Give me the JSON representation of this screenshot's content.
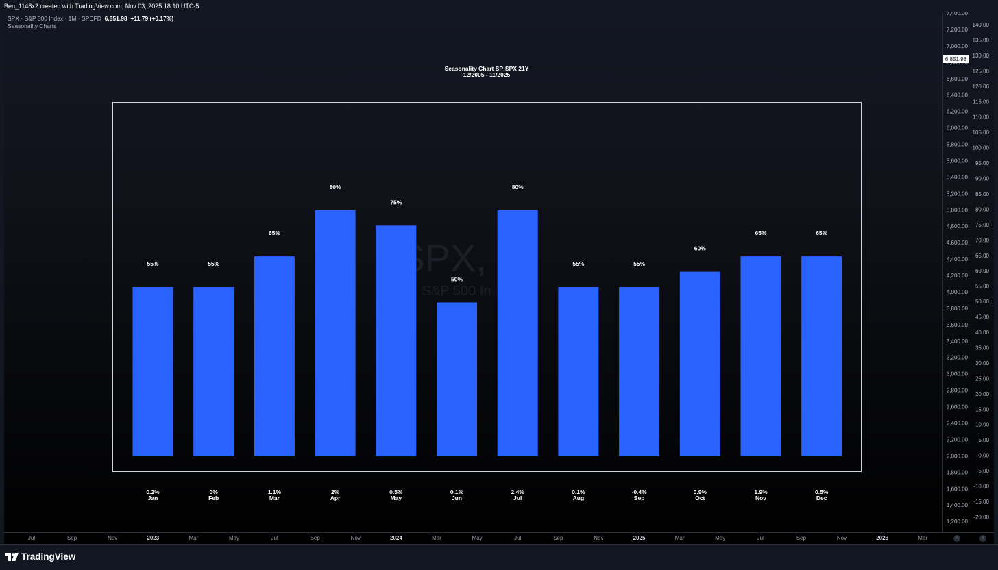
{
  "top_bar": {
    "text": "Ben_1148x2 created with TradingView.com, Nov 03, 2025 18:10 UTC-5"
  },
  "legend": {
    "symbol_text": "SPX · S&P 500 Index · 1M · SPCFD",
    "price": "6,851.98",
    "change": "+11.79 (+0.17%)",
    "indicator": "Seasonality Charts"
  },
  "watermark": {
    "symbol": "SPX,",
    "description": "S&P 500 In"
  },
  "price_scale": {
    "labels": [
      "7,400.00",
      "7,200.00",
      "7,000.00",
      "6,800.00",
      "6,600.00",
      "6,400.00",
      "6,200.00",
      "6,000.00",
      "5,800.00",
      "5,600.00",
      "5,400.00",
      "5,200.00",
      "5,000.00",
      "4,800.00",
      "4,600.00",
      "4,400.00",
      "4,200.00",
      "4,000.00",
      "3,800.00",
      "3,600.00",
      "3,400.00",
      "3,200.00",
      "3,000.00",
      "2,800.00",
      "2,600.00",
      "2,400.00",
      "2,200.00",
      "2,000.00",
      "1,800.00",
      "1,600.00",
      "1,400.00",
      "1,200.00"
    ],
    "current_price_tag": "6,851.98"
  },
  "indicator_scale": {
    "labels": [
      "140.00",
      "135.00",
      "130.00",
      "125.00",
      "120.00",
      "115.00",
      "110.00",
      "105.00",
      "100.00",
      "95.00",
      "90.00",
      "85.00",
      "80.00",
      "75.00",
      "70.00",
      "65.00",
      "60.00",
      "55.00",
      "50.00",
      "45.00",
      "40.00",
      "35.00",
      "30.00",
      "25.00",
      "20.00",
      "15.00",
      "10.00",
      "5.00",
      "0.00",
      "-5.00",
      "-10.00",
      "-15.00",
      "-20.00"
    ]
  },
  "time_axis": {
    "labels": [
      "Jul",
      "Sep",
      "Nov",
      "2023",
      "Mar",
      "May",
      "Jul",
      "Sep",
      "Nov",
      "2024",
      "Mar",
      "May",
      "Jul",
      "Sep",
      "Nov",
      "2025",
      "Mar",
      "May",
      "Jul",
      "Sep",
      "Nov",
      "2026",
      "Mar"
    ],
    "year_labels": [
      "2023",
      "2024",
      "2025",
      "2026"
    ]
  },
  "scale_buttons": [
    "A",
    "B"
  ],
  "footer": {
    "logo_text": "TradingView"
  },
  "chart_data": {
    "type": "bar",
    "title": "Seasonality Chart SP:SPX 21Y",
    "subtitle": "12/2005 - 11/2025",
    "categories": [
      "Jan",
      "Feb",
      "Mar",
      "Apr",
      "May",
      "Jun",
      "Jul",
      "Aug",
      "Sep",
      "Oct",
      "Nov",
      "Dec"
    ],
    "values": [
      55,
      55,
      65,
      80,
      75,
      50,
      80,
      55,
      55,
      60,
      65,
      65
    ],
    "value_labels": [
      "55%",
      "55%",
      "65%",
      "80%",
      "75%",
      "50%",
      "80%",
      "55%",
      "55%",
      "60%",
      "65%",
      "65%"
    ],
    "avg_returns": [
      "0.2%",
      "0%",
      "1.1%",
      "2%",
      "0.5%",
      "0.1%",
      "2.4%",
      "0.1%",
      "-0.4%",
      "0.9%",
      "1.9%",
      "0.5%"
    ],
    "ylim": [
      -20,
      140
    ],
    "bar_color": "#2962ff",
    "grid": false
  }
}
